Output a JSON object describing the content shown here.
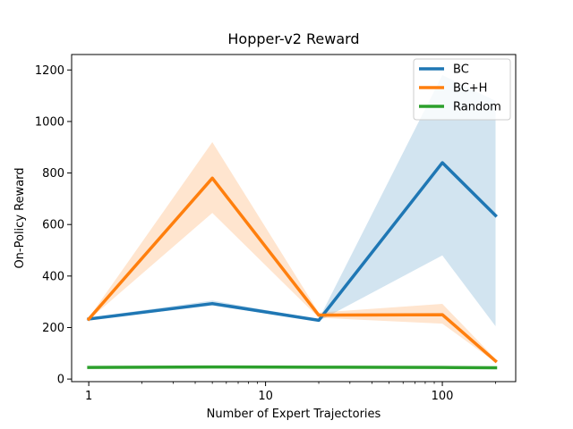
{
  "chart_data": {
    "type": "line",
    "title": "Hopper-v2 Reward",
    "xlabel": "Number of Expert Trajectories",
    "ylabel": "On-Policy Reward",
    "xscale": "log",
    "xlim": [
      0.8,
      260
    ],
    "ylim": [
      -10,
      1260
    ],
    "x": [
      1,
      5,
      20,
      100,
      200
    ],
    "x_ticks": [
      1,
      10,
      100
    ],
    "x_tick_labels": [
      "1",
      "10",
      "100"
    ],
    "y_ticks": [
      0,
      200,
      400,
      600,
      800,
      1000,
      1200
    ],
    "y_tick_labels": [
      "0",
      "200",
      "400",
      "600",
      "800",
      "1000",
      "1200"
    ],
    "grid": false,
    "legend_position": "top-right",
    "series": [
      {
        "name": "BC",
        "color": "#1f77b4",
        "values": [
          233,
          293,
          228,
          840,
          635
        ],
        "lower": [
          230,
          285,
          225,
          480,
          205
        ],
        "upper": [
          238,
          305,
          232,
          1180,
          1080
        ]
      },
      {
        "name": "BC+H",
        "color": "#ff7f0e",
        "values": [
          233,
          780,
          248,
          250,
          70
        ],
        "lower": [
          230,
          645,
          238,
          215,
          65
        ],
        "upper": [
          238,
          920,
          258,
          292,
          78
        ]
      },
      {
        "name": "Random",
        "color": "#2ca02c",
        "values": [
          45,
          47,
          46,
          45,
          44
        ],
        "lower": [
          44,
          46,
          45,
          44,
          43
        ],
        "upper": [
          46,
          48,
          47,
          46,
          45
        ]
      }
    ]
  }
}
